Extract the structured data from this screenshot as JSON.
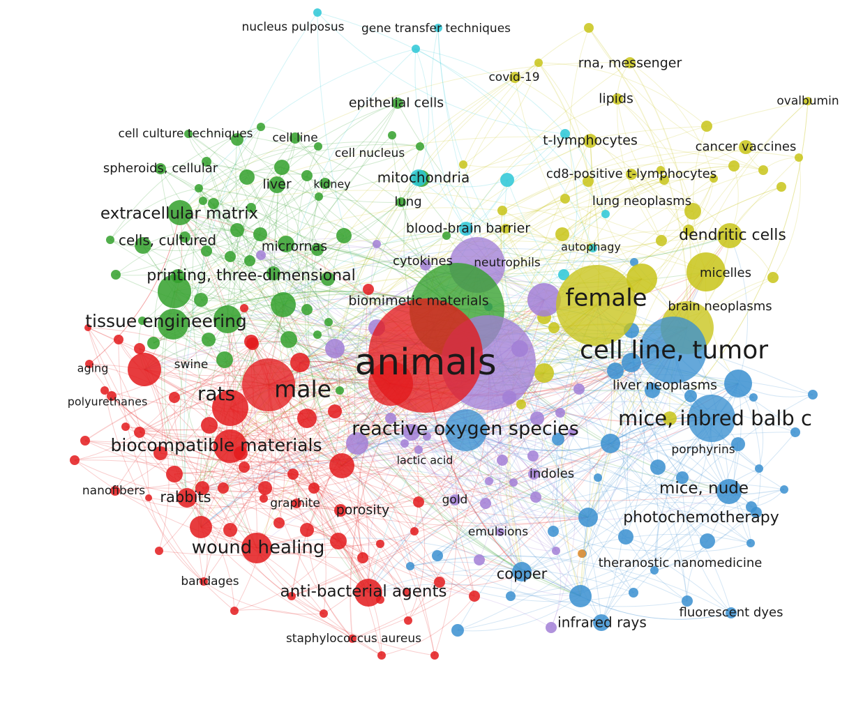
{
  "clusters": [
    {
      "id": "red",
      "color": "#e31a1c"
    },
    {
      "id": "green",
      "color": "#33a02c"
    },
    {
      "id": "blue",
      "color": "#3a8fd0"
    },
    {
      "id": "yellow",
      "color": "#c8c419"
    },
    {
      "id": "purple",
      "color": "#a27fd6"
    },
    {
      "id": "cyan",
      "color": "#2cc7d6"
    },
    {
      "id": "orange",
      "color": "#f0932b"
    }
  ],
  "keywords": [
    {
      "label": "animals",
      "cluster": "red"
    },
    {
      "label": "male",
      "cluster": "red"
    },
    {
      "label": "rats",
      "cluster": "red"
    },
    {
      "label": "tissue engineering",
      "cluster": "green"
    },
    {
      "label": "biocompatible materials",
      "cluster": "red"
    },
    {
      "label": "wound healing",
      "cluster": "red"
    },
    {
      "label": "anti-bacterial agents",
      "cluster": "red"
    },
    {
      "label": "rabbits",
      "cluster": "red"
    },
    {
      "label": "swine",
      "cluster": "red"
    },
    {
      "label": "aging",
      "cluster": "red"
    },
    {
      "label": "polyurethanes",
      "cluster": "red"
    },
    {
      "label": "nanofibers",
      "cluster": "red"
    },
    {
      "label": "graphite",
      "cluster": "red"
    },
    {
      "label": "porosity",
      "cluster": "red"
    },
    {
      "label": "bandages",
      "cluster": "red"
    },
    {
      "label": "staphylococcus aureus",
      "cluster": "red"
    },
    {
      "label": "extracellular matrix",
      "cluster": "green"
    },
    {
      "label": "cells, cultured",
      "cluster": "green"
    },
    {
      "label": "printing, three-dimensional",
      "cluster": "green"
    },
    {
      "label": "micrornas",
      "cluster": "green"
    },
    {
      "label": "spheroids, cellular",
      "cluster": "green"
    },
    {
      "label": "cell culture techniques",
      "cluster": "green"
    },
    {
      "label": "cell line",
      "cluster": "green"
    },
    {
      "label": "cell nucleus",
      "cluster": "green"
    },
    {
      "label": "liver",
      "cluster": "green"
    },
    {
      "label": "kidney",
      "cluster": "green"
    },
    {
      "label": "epithelial cells",
      "cluster": "green"
    },
    {
      "label": "mitochondria",
      "cluster": "green"
    },
    {
      "label": "lung",
      "cluster": "green"
    },
    {
      "label": "biomimetic materials",
      "cluster": "green"
    },
    {
      "label": "female",
      "cluster": "yellow"
    },
    {
      "label": "brain neoplasms",
      "cluster": "yellow"
    },
    {
      "label": "micelles",
      "cluster": "yellow"
    },
    {
      "label": "dendritic cells",
      "cluster": "yellow"
    },
    {
      "label": "lung neoplasms",
      "cluster": "yellow"
    },
    {
      "label": "cd8-positive t-lymphocytes",
      "cluster": "yellow"
    },
    {
      "label": "cancer vaccines",
      "cluster": "yellow"
    },
    {
      "label": "t-lymphocytes",
      "cluster": "yellow"
    },
    {
      "label": "lipids",
      "cluster": "yellow"
    },
    {
      "label": "rna, messenger",
      "cluster": "yellow"
    },
    {
      "label": "covid-19",
      "cluster": "yellow"
    },
    {
      "label": "ovalbumin",
      "cluster": "yellow"
    },
    {
      "label": "autophagy",
      "cluster": "yellow"
    },
    {
      "label": "cell line, tumor",
      "cluster": "blue"
    },
    {
      "label": "liver neoplasms",
      "cluster": "blue"
    },
    {
      "label": "mice, inbred balb c",
      "cluster": "blue"
    },
    {
      "label": "porphyrins",
      "cluster": "blue"
    },
    {
      "label": "mice, nude",
      "cluster": "blue"
    },
    {
      "label": "photochemotherapy",
      "cluster": "blue"
    },
    {
      "label": "theranostic nanomedicine",
      "cluster": "blue"
    },
    {
      "label": "fluorescent dyes",
      "cluster": "blue"
    },
    {
      "label": "infrared rays",
      "cluster": "blue"
    },
    {
      "label": "copper",
      "cluster": "blue"
    },
    {
      "label": "reactive oxygen species",
      "cluster": "blue"
    },
    {
      "label": "indoles",
      "cluster": "purple"
    },
    {
      "label": "gold",
      "cluster": "purple"
    },
    {
      "label": "emulsions",
      "cluster": "purple"
    },
    {
      "label": "lactic acid",
      "cluster": "purple"
    },
    {
      "label": "cytokines",
      "cluster": "purple"
    },
    {
      "label": "neutrophils",
      "cluster": "purple"
    },
    {
      "label": "blood-brain barrier",
      "cluster": "cyan"
    },
    {
      "label": "nucleus pulposus",
      "cluster": "cyan"
    },
    {
      "label": "gene transfer techniques",
      "cluster": "cyan"
    }
  ]
}
